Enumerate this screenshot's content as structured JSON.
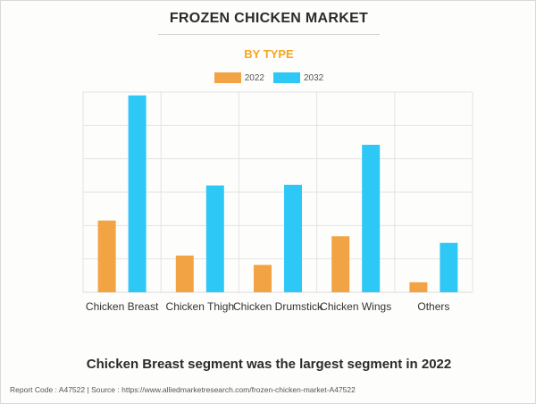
{
  "header": {
    "title": "FROZEN CHICKEN MARKET",
    "subtitle": "BY TYPE"
  },
  "colors": {
    "series_2022": "#f2a444",
    "series_2032": "#2ec8f7",
    "subtitle": "#f5a623",
    "grid": "#e3e3e3"
  },
  "chart_data": {
    "type": "bar",
    "title": "FROZEN CHICKEN MARKET",
    "subtitle": "BY TYPE",
    "categories": [
      "Chicken Breast",
      "Chicken Thigh",
      "Chicken Drumstick",
      "Chicken Wings",
      "Others"
    ],
    "series": [
      {
        "name": "2022",
        "color": "#f2a444",
        "values": [
          2.15,
          1.1,
          0.82,
          1.68,
          0.3
        ]
      },
      {
        "name": "2032",
        "color": "#2ec8f7",
        "values": [
          5.9,
          3.2,
          3.22,
          4.42,
          1.48
        ]
      }
    ],
    "xlabel": "",
    "ylabel": "",
    "ylim": [
      0,
      6
    ],
    "yticks": [
      0,
      1,
      2,
      3,
      4,
      5,
      6
    ],
    "y_tick_labels_shown": false,
    "grid": true,
    "legend": "top-center"
  },
  "caption": "Chicken Breast segment was the largest segment in 2022",
  "footer": {
    "report_code": "Report Code : A47522",
    "separator": "|",
    "source": "Source : https://www.alliedmarketresearch.com/frozen-chicken-market-A47522"
  }
}
